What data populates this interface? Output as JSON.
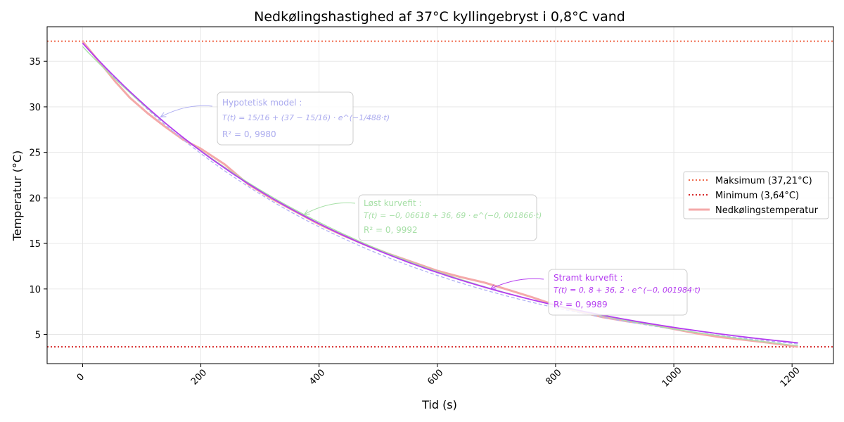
{
  "chart_data": {
    "type": "line",
    "title": "Nedkølingshastighed af 37°C kyllingebryst i 0,8°C vand",
    "xlabel": "Tid (s)",
    "ylabel": "Temperatur (°C)",
    "xlim": [
      -60,
      1270
    ],
    "ylim": [
      1.8,
      38.8
    ],
    "xticks": [
      0,
      200,
      400,
      600,
      800,
      1000,
      1200
    ],
    "yticks": [
      5,
      10,
      15,
      20,
      25,
      30,
      35
    ],
    "grid": true,
    "legend_position": "center-right",
    "colors": {
      "data": "#f4a9a9",
      "tight_fit": "#b43cf0",
      "loose_fit": "#a6e0a6",
      "hypothetical": "#b0b0f2",
      "max_line": "#f06a4c",
      "min_line": "#d62728",
      "hypo_text": "#aaaaee",
      "loose_text": "#a6dfa6",
      "tight_text": "#b43cf0",
      "box_border": "#cccccc"
    },
    "reference_lines": [
      {
        "label": "Maksimum (37,21°C)",
        "y": 37.21
      },
      {
        "label": "Minimum (3,64°C)",
        "y": 3.64
      }
    ],
    "series": [
      {
        "name": "Nedkølingstemperatur",
        "x": [
          0,
          20,
          40,
          55,
          80,
          110,
          140,
          170,
          200,
          240,
          280,
          320,
          360,
          400,
          440,
          480,
          520,
          560,
          600,
          640,
          680,
          720,
          760,
          800,
          840,
          880,
          920,
          960,
          1000,
          1040,
          1080,
          1120,
          1160,
          1200,
          1210
        ],
        "y": [
          37.2,
          35.6,
          34.0,
          32.8,
          31.0,
          29.3,
          27.8,
          26.4,
          25.4,
          23.7,
          21.5,
          19.9,
          18.5,
          17.1,
          15.9,
          14.8,
          13.8,
          12.9,
          12.0,
          11.3,
          10.7,
          9.9,
          9.1,
          8.2,
          7.5,
          6.9,
          6.45,
          6.1,
          5.6,
          5.1,
          4.7,
          4.4,
          4.1,
          3.75,
          3.64
        ]
      }
    ],
    "annotations": [
      {
        "id": "hypothetical",
        "lines": [
          "Hypotetisk model :",
          "T(t) = 15/16 + (37 − 15/16) · e^(−1/488·t)",
          "R² = 0, 9980"
        ],
        "target": [
          132,
          28.9
        ]
      },
      {
        "id": "loose",
        "lines": [
          "Løst kurvefit :",
          "T(t) = −0, 06618 + 36, 69 · e^(−0, 001866·t)",
          "R² = 0, 9992"
        ],
        "target": [
          375,
          18.2
        ]
      },
      {
        "id": "tight",
        "lines": [
          "Stramt kurvefit :",
          "T(t) = 0, 8 + 36, 2 · e^(−0, 001984·t)",
          "R² = 0, 9989"
        ],
        "target": [
          690,
          10.0
        ]
      }
    ],
    "fits": {
      "tight": {
        "a": 0.8,
        "b": 36.2,
        "k": 0.001984
      },
      "loose": {
        "a": -0.06618,
        "b": 36.69,
        "k": 0.001866
      },
      "hypothetical": {
        "a": 0.9375,
        "b": 36.0625,
        "k": 0.0020492
      }
    }
  }
}
